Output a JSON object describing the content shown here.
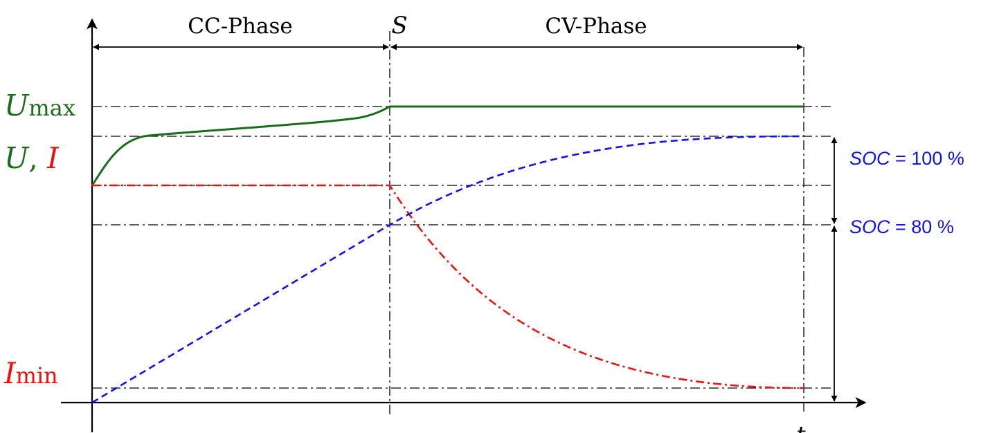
{
  "phases": {
    "cc_label": "CC-Phase",
    "switch_label": "S",
    "cv_label": "CV-Phase"
  },
  "y_labels": {
    "u_max": {
      "main": "U",
      "sub": "max"
    },
    "u_i": {
      "u": "U",
      "sep": ", ",
      "i": "I"
    },
    "i_min": {
      "main": "I",
      "sub": "min"
    }
  },
  "x_label": "t",
  "soc_labels": {
    "full": {
      "var": "SOC",
      "rest": " = 100 %"
    },
    "eighty": {
      "var": "SOC",
      "rest": " = 80 %"
    }
  },
  "colors": {
    "voltage": "#1a6e1a",
    "current": "#ee1111",
    "soc": "#1111ee",
    "guides": "#000000"
  }
}
